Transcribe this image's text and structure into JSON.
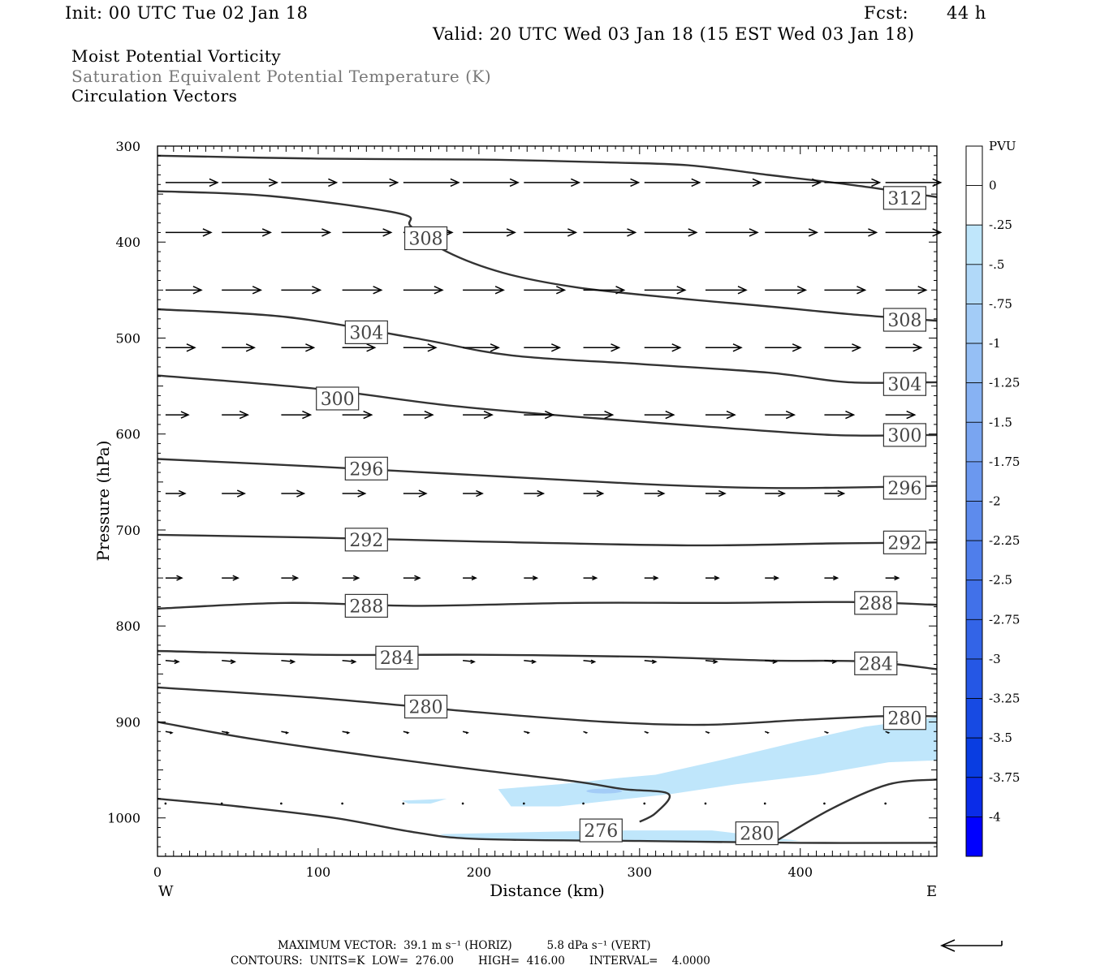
{
  "header": {
    "init": "Init: 00 UTC Tue 02 Jan 18",
    "fcst_label": "Fcst:",
    "fcst_value": "44 h",
    "valid": "Valid: 20 UTC Wed 03 Jan 18 (15 EST Wed 03 Jan 18)",
    "field1": "Moist Potential Vorticity",
    "field2": "Saturation Equivalent Potential Temperature (K)",
    "field3": "Circulation Vectors"
  },
  "footer": {
    "line1": "MAXIMUM VECTOR:  39.1 m s⁻¹ (HORIZ)          5.8 dPa s⁻¹ (VERT)",
    "line2": "CONTOURS:  UNITS=K  LOW=  276.00       HIGH=  416.00       INTERVAL=    4.0000"
  },
  "chart_data": {
    "type": "cross-section",
    "xlabel": "Distance (km)",
    "ylabel": "Pressure (hPa)",
    "xlim": [
      0,
      485
    ],
    "ylim": [
      1040,
      300
    ],
    "x_ticks": [
      0,
      100,
      200,
      300,
      400
    ],
    "y_ticks": [
      300,
      400,
      500,
      600,
      700,
      800,
      900,
      1000
    ],
    "x_end_labels": {
      "left": "W",
      "right": "E"
    },
    "colorbar": {
      "title": "PVU",
      "labels": [
        "0",
        "-.25",
        "-.5",
        "-.75",
        "-1",
        "-1.25",
        "-1.5",
        "-1.75",
        "-2",
        "-2.25",
        "-2.5",
        "-2.75",
        "-3",
        "-3.25",
        "-3.5",
        "-3.75",
        "-4"
      ],
      "colors": [
        "#ffffff",
        "#ffffff",
        "#bfe6fb",
        "#b1d9f9",
        "#a3ccf7",
        "#95bff5",
        "#87b2f3",
        "#79a5f1",
        "#6b98ef",
        "#5d8bed",
        "#4f7eeb",
        "#4171e9",
        "#3364e7",
        "#2557e5",
        "#174ae3",
        "#093de1",
        "#0a2ce8",
        "#0000ff"
      ]
    },
    "contours": [
      {
        "label": "312",
        "points": [
          [
            0,
            310
          ],
          [
            100,
            313
          ],
          [
            200,
            314
          ],
          [
            280,
            317
          ],
          [
            330,
            320
          ],
          [
            380,
            330
          ],
          [
            430,
            340
          ],
          [
            485,
            353
          ]
        ],
        "labels": [
          [
            465,
            354
          ]
        ]
      },
      {
        "label": "308",
        "points": [
          [
            0,
            347
          ],
          [
            70,
            352
          ],
          [
            150,
            370
          ],
          [
            158,
            384
          ],
          [
            180,
            410
          ],
          [
            215,
            432
          ],
          [
            260,
            447
          ],
          [
            320,
            458
          ],
          [
            380,
            467
          ],
          [
            430,
            475
          ],
          [
            485,
            482
          ]
        ],
        "labels": [
          [
            167,
            396
          ],
          [
            465,
            481
          ]
        ]
      },
      {
        "label": "304",
        "points": [
          [
            0,
            470
          ],
          [
            80,
            478
          ],
          [
            160,
            500
          ],
          [
            220,
            518
          ],
          [
            300,
            527
          ],
          [
            380,
            536
          ],
          [
            430,
            546
          ],
          [
            485,
            546
          ]
        ],
        "labels": [
          [
            130,
            494
          ],
          [
            465,
            548
          ]
        ]
      },
      {
        "label": "300",
        "points": [
          [
            0,
            539
          ],
          [
            100,
            553
          ],
          [
            180,
            570
          ],
          [
            260,
            582
          ],
          [
            340,
            592
          ],
          [
            420,
            601
          ],
          [
            485,
            601
          ]
        ],
        "labels": [
          [
            112,
            563
          ],
          [
            465,
            601
          ]
        ]
      },
      {
        "label": "296",
        "points": [
          [
            0,
            626
          ],
          [
            100,
            634
          ],
          [
            200,
            643
          ],
          [
            300,
            652
          ],
          [
            370,
            656
          ],
          [
            420,
            656
          ],
          [
            485,
            654
          ]
        ],
        "labels": [
          [
            130,
            636
          ],
          [
            465,
            656
          ]
        ]
      },
      {
        "label": "292",
        "points": [
          [
            0,
            705
          ],
          [
            100,
            708
          ],
          [
            200,
            712
          ],
          [
            330,
            716
          ],
          [
            420,
            714
          ],
          [
            485,
            713
          ]
        ],
        "labels": [
          [
            130,
            710
          ],
          [
            465,
            713
          ]
        ]
      },
      {
        "label": "288",
        "points": [
          [
            0,
            782
          ],
          [
            80,
            776
          ],
          [
            160,
            779
          ],
          [
            260,
            776
          ],
          [
            350,
            776
          ],
          [
            430,
            775
          ],
          [
            485,
            778
          ]
        ],
        "labels": [
          [
            130,
            779
          ],
          [
            447,
            776
          ]
        ]
      },
      {
        "label": "284",
        "points": [
          [
            0,
            826
          ],
          [
            100,
            830
          ],
          [
            200,
            830
          ],
          [
            300,
            832
          ],
          [
            380,
            836
          ],
          [
            440,
            837
          ],
          [
            485,
            845
          ]
        ],
        "labels": [
          [
            149,
            833
          ],
          [
            447,
            839
          ]
        ]
      },
      {
        "label": "280",
        "points": [
          [
            0,
            864
          ],
          [
            100,
            875
          ],
          [
            200,
            890
          ],
          [
            280,
            900
          ],
          [
            340,
            903
          ],
          [
            400,
            898
          ],
          [
            450,
            894
          ],
          [
            485,
            894
          ]
        ],
        "labels": [
          [
            167,
            884
          ],
          [
            465,
            896
          ]
        ]
      },
      {
        "label": "280",
        "points": [
          [
            386,
            1023
          ],
          [
            420,
            990
          ],
          [
            455,
            965
          ],
          [
            485,
            960
          ]
        ],
        "labels": [
          [
            373,
            1016
          ]
        ]
      },
      {
        "label": "276",
        "points": [
          [
            0,
            900
          ],
          [
            60,
            918
          ],
          [
            140,
            937
          ],
          [
            200,
            950
          ],
          [
            260,
            962
          ],
          [
            290,
            970
          ],
          [
            318,
            975
          ],
          [
            310,
            995
          ],
          [
            300,
            1004
          ]
        ],
        "labels": [
          [
            276,
            1013
          ]
        ]
      },
      {
        "label": "",
        "points": [
          [
            0,
            980
          ],
          [
            50,
            988
          ],
          [
            110,
            1000
          ],
          [
            160,
            1015
          ],
          [
            200,
            1022
          ],
          [
            300,
            1024
          ],
          [
            400,
            1026
          ],
          [
            485,
            1026
          ]
        ],
        "labels": []
      }
    ],
    "pv_shading": [
      {
        "level": "-.25 to -.5",
        "points": [
          [
            310,
            955
          ],
          [
            350,
            940
          ],
          [
            400,
            920
          ],
          [
            440,
            905
          ],
          [
            485,
            895
          ],
          [
            485,
            940
          ],
          [
            455,
            942
          ],
          [
            410,
            955
          ],
          [
            360,
            965
          ],
          [
            320,
            975
          ],
          [
            250,
            988
          ],
          [
            220,
            988
          ],
          [
            212,
            970
          ],
          [
            250,
            965
          ],
          [
            290,
            958
          ]
        ]
      },
      {
        "level": "-.25 to -.5",
        "points": [
          [
            152,
            982
          ],
          [
            180,
            980
          ],
          [
            170,
            985
          ],
          [
            156,
            985
          ]
        ]
      },
      {
        "level": "-.25 to -.5",
        "points": [
          [
            175,
            1017
          ],
          [
            280,
            1013
          ],
          [
            345,
            1013
          ],
          [
            400,
            1024
          ],
          [
            340,
            1025
          ],
          [
            250,
            1023
          ],
          [
            185,
            1021
          ]
        ]
      }
    ],
    "pv_core": {
      "level": "-.5 to -.75",
      "center": [
        278,
        972
      ]
    },
    "vectors": {
      "columns": [
        5,
        40,
        77,
        115,
        153,
        190,
        228,
        265,
        303,
        341,
        378,
        415,
        453
      ],
      "rows": [
        {
          "p": 338,
          "lengths": [
            32,
            34,
            34,
            34,
            34,
            34,
            34,
            34,
            34,
            34,
            34,
            34,
            34
          ]
        },
        {
          "p": 390,
          "lengths": [
            28,
            30,
            30,
            30,
            30,
            32,
            32,
            32,
            32,
            32,
            32,
            32,
            34
          ]
        },
        {
          "p": 450,
          "lengths": [
            22,
            24,
            24,
            24,
            24,
            25,
            25,
            25,
            25,
            25,
            25,
            25,
            25
          ]
        },
        {
          "p": 510,
          "lengths": [
            18,
            20,
            20,
            20,
            20,
            22,
            22,
            22,
            22,
            22,
            22,
            22,
            22
          ]
        },
        {
          "p": 580,
          "lengths": [
            14,
            16,
            18,
            18,
            18,
            18,
            18,
            18,
            18,
            18,
            18,
            18,
            18
          ]
        },
        {
          "p": 662,
          "lengths": [
            12,
            14,
            14,
            14,
            14,
            12,
            12,
            12,
            12,
            12,
            12,
            12,
            12
          ]
        },
        {
          "p": 750,
          "lengths": [
            10,
            10,
            10,
            10,
            10,
            8,
            8,
            8,
            8,
            8,
            8,
            8,
            8
          ]
        },
        {
          "p": 836,
          "lengths": [
            8,
            8,
            8,
            8,
            8,
            7,
            7,
            7,
            7,
            7,
            7,
            7,
            7
          ]
        },
        {
          "p": 910,
          "lengths": [
            4,
            4,
            4,
            4,
            3,
            3,
            3,
            2,
            2,
            2,
            2,
            2,
            2
          ]
        },
        {
          "p": 985,
          "lengths": [
            1,
            1,
            1,
            1,
            1,
            1,
            1,
            1,
            1,
            1,
            1,
            1,
            1
          ]
        }
      ]
    }
  }
}
